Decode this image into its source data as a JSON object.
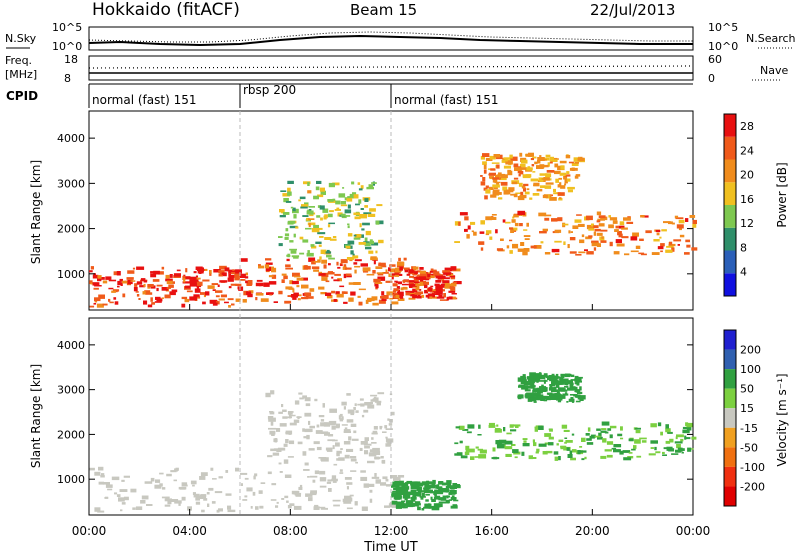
{
  "header": {
    "station": "Hokkaido (fitACF)",
    "beam": "Beam 15",
    "date": "22/Jul/2013"
  },
  "noise_panel": {
    "left_label": "N.Sky",
    "right_label": "N.Search",
    "left_ticks": [
      "10^5",
      "10^0"
    ],
    "right_ticks": [
      "10^5",
      "10^0"
    ]
  },
  "freq_panel": {
    "left_label_line1": "Freq.",
    "left_label_line2": "[MHz]",
    "right_label": "Nave",
    "left_ticks": [
      "18",
      "8"
    ],
    "right_ticks": [
      "60",
      "0"
    ]
  },
  "cpid_panel": {
    "label": "CPID",
    "segments": [
      {
        "start_hour": 0,
        "end_hour": 6,
        "label": "normal (fast) 151"
      },
      {
        "start_hour": 6,
        "end_hour": 12,
        "label": "rbsp 200"
      },
      {
        "start_hour": 12,
        "end_hour": 24,
        "label": "normal (fast) 151"
      }
    ]
  },
  "x_axis": {
    "title": "Time UT",
    "ticks": [
      "00:00",
      "04:00",
      "08:00",
      "12:00",
      "16:00",
      "20:00",
      "00:00"
    ],
    "tick_hours": [
      0,
      4,
      8,
      12,
      16,
      20,
      24
    ]
  },
  "colors": {
    "power_scale": [
      "#1010e0",
      "#2b5fb8",
      "#2f8f6a",
      "#7ec850",
      "#f0c020",
      "#f08c1c",
      "#f05a1a",
      "#e81010"
    ],
    "velocity_scale": [
      "#2020d0",
      "#3060b0",
      "#30a040",
      "#7cd040",
      "#c8c8c0",
      "#f0a020",
      "#f07010",
      "#f03010",
      "#e00000"
    ]
  },
  "chart_data": [
    {
      "type": "heatmap",
      "title": "",
      "ylabel": "Slant Range [km]",
      "xlabel": "",
      "xlim": [
        0,
        24
      ],
      "ylim": [
        200,
        4600
      ],
      "y_ticks": [
        "1000",
        "2000",
        "3000",
        "4000"
      ],
      "y_tick_values": [
        1000,
        2000,
        3000,
        4000
      ],
      "colorbar": {
        "label": "Power [dB]",
        "ticks": [
          "4",
          "8",
          "12",
          "16",
          "20",
          "24",
          "28"
        ],
        "range": [
          0,
          30
        ]
      },
      "regions": [
        {
          "t0": 0.0,
          "t1": 6.0,
          "r0": 250,
          "r1": 1100,
          "value": 26
        },
        {
          "t0": 6.0,
          "t1": 12.5,
          "r0": 300,
          "r1": 1300,
          "value": 24
        },
        {
          "t0": 7.5,
          "t1": 11.5,
          "r0": 1300,
          "r1": 3000,
          "value": 14
        },
        {
          "t0": 12.0,
          "t1": 14.5,
          "r0": 400,
          "r1": 1100,
          "value": 26
        },
        {
          "t0": 14.5,
          "t1": 24.0,
          "r0": 1400,
          "r1": 2300,
          "value": 22
        },
        {
          "t0": 15.5,
          "t1": 19.5,
          "r0": 2600,
          "r1": 3600,
          "value": 20
        }
      ]
    },
    {
      "type": "heatmap",
      "title": "",
      "ylabel": "Slant Range [km]",
      "xlabel": "Time UT",
      "xlim": [
        0,
        24
      ],
      "ylim": [
        200,
        4600
      ],
      "y_ticks": [
        "1000",
        "2000",
        "3000",
        "4000"
      ],
      "y_tick_values": [
        1000,
        2000,
        3000,
        4000
      ],
      "colorbar": {
        "label": "Velocity [m s⁻¹]",
        "ticks": [
          "200",
          "100",
          "50",
          "15",
          "-15",
          "-50",
          "-100",
          "-200"
        ]
      },
      "regions": [
        {
          "t0": 0.0,
          "t1": 12.5,
          "r0": 250,
          "r1": 1200,
          "value": 0
        },
        {
          "t0": 7.0,
          "t1": 12.0,
          "r0": 1300,
          "r1": 2900,
          "value": 0
        },
        {
          "t0": 12.0,
          "t1": 14.5,
          "r0": 300,
          "r1": 900,
          "value": 60
        },
        {
          "t0": 14.5,
          "t1": 24.0,
          "r0": 1400,
          "r1": 2200,
          "value": 30
        },
        {
          "t0": 17.0,
          "t1": 19.5,
          "r0": 2700,
          "r1": 3300,
          "value": 60
        }
      ]
    }
  ]
}
